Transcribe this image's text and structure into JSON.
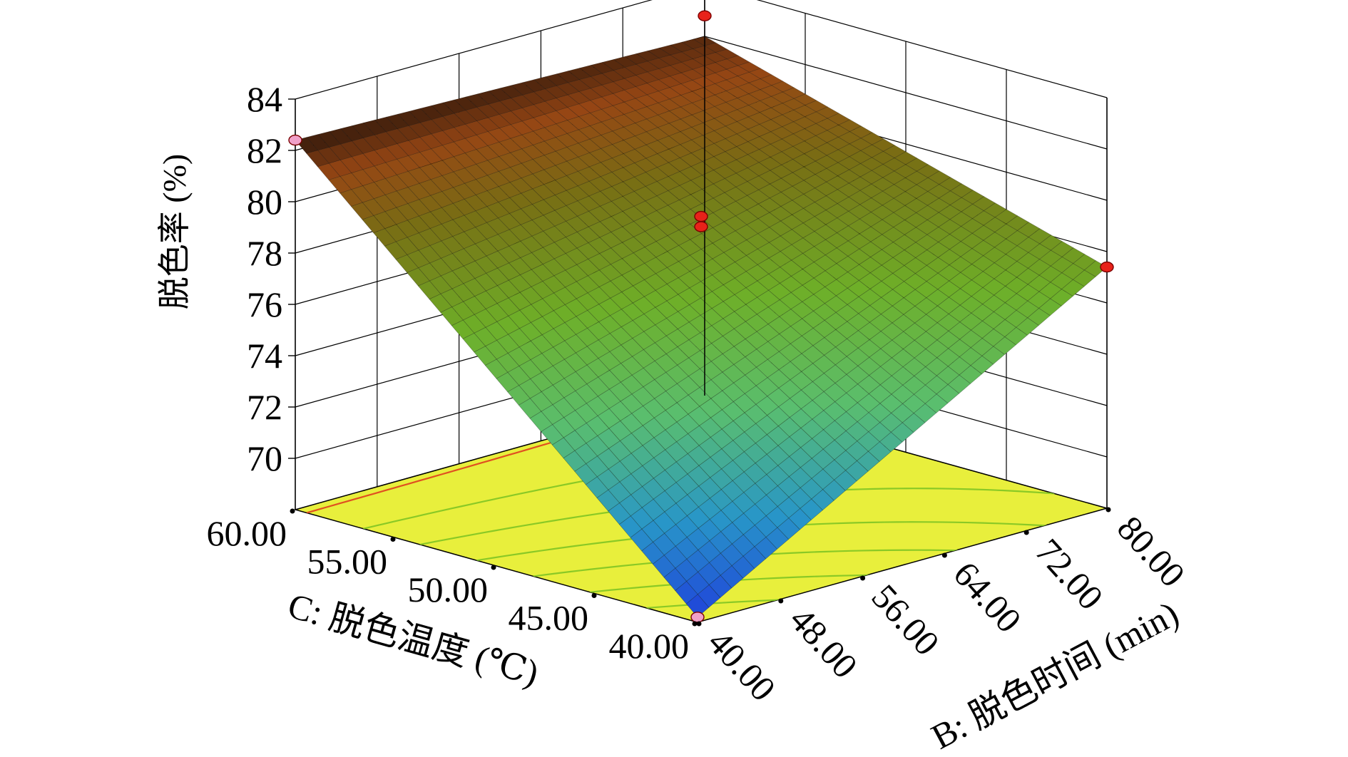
{
  "chart_data": {
    "type": "surface3d",
    "zlabel": "脱色率 (%)",
    "xlabel": "C: 脱色温度 (℃)",
    "ylabel": "B: 脱色时间 (min)",
    "z_ticks": [
      "70",
      "72",
      "74",
      "76",
      "78",
      "80",
      "82",
      "84"
    ],
    "c_ticks": [
      "40.00",
      "45.00",
      "50.00",
      "55.00",
      "60.00"
    ],
    "b_ticks": [
      "40.00",
      "48.00",
      "56.00",
      "64.00",
      "72.00",
      "80.00"
    ],
    "zlim": [
      68,
      84
    ],
    "clim": [
      40,
      60
    ],
    "blim": [
      40,
      80
    ],
    "surface_corners": [
      {
        "temperature": 40,
        "time": 40,
        "decolorization": 68.2
      },
      {
        "temperature": 60,
        "time": 40,
        "decolorization": 82.4
      },
      {
        "temperature": 40,
        "time": 80,
        "decolorization": 77.4
      },
      {
        "temperature": 60,
        "time": 80,
        "decolorization": 82.0
      }
    ],
    "design_points": [
      {
        "temperature": 60,
        "time": 40,
        "decolorization": 82.4,
        "position": "above"
      },
      {
        "temperature": 40,
        "time": 40,
        "decolorization": 68.2,
        "position": "above"
      },
      {
        "temperature": 40,
        "time": 80,
        "decolorization": 77.4,
        "position": "above"
      },
      {
        "temperature": 60,
        "time": 80,
        "decolorization": 82.8,
        "position": "above"
      },
      {
        "temperature": 50,
        "time": 60,
        "decolorization": 79.4,
        "position": "above"
      },
      {
        "temperature": 50,
        "time": 60,
        "decolorization": 79.0,
        "position": "above"
      }
    ],
    "colors": {
      "floor": "#e8ef3c",
      "contour": "#8ac926",
      "contour_high": "#e05020",
      "point_high": "#e8221a",
      "point_low": "#f0a0c8"
    },
    "grid": true
  }
}
